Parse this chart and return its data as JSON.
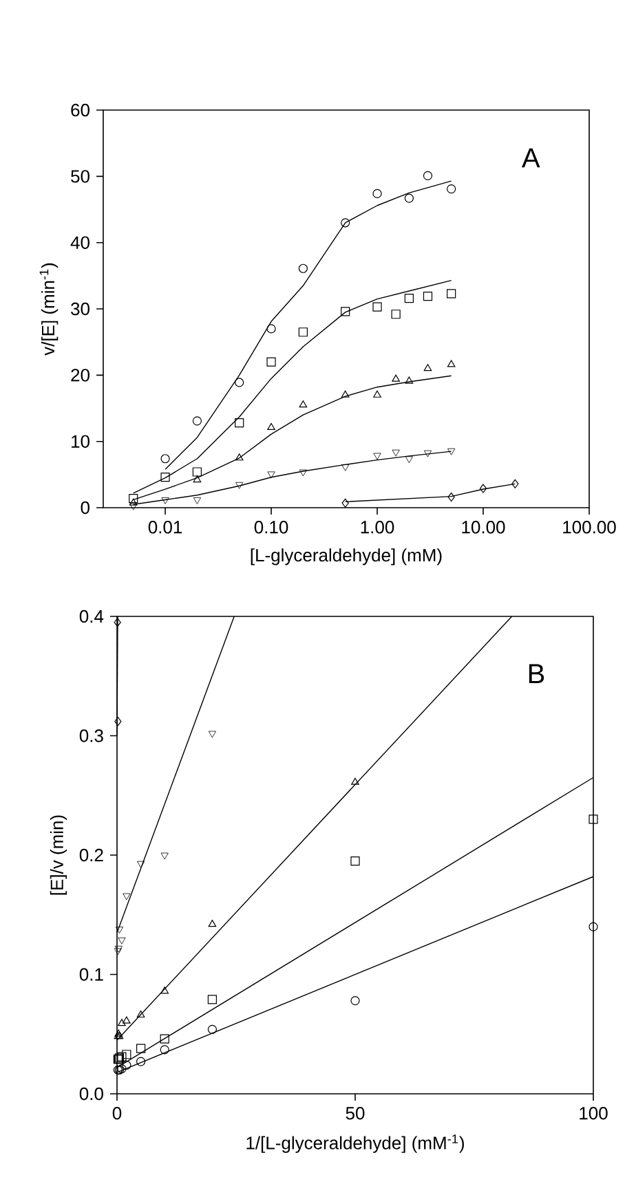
{
  "chart_data": [
    {
      "type": "scatter",
      "xlabel": "[L-glyceraldehyde] (mM)",
      "ylabel": "v/[E] (min$^{-1}$)",
      "log": "x",
      "xlim": [
        0.0026,
        100
      ],
      "ylim": [
        0,
        60
      ],
      "xticks": [
        {
          "value": 0.01,
          "label": "0.01"
        },
        {
          "value": 0.1,
          "label": "0.10"
        },
        {
          "value": 1,
          "label": "1.00"
        },
        {
          "value": 10,
          "label": "10.00"
        },
        {
          "value": 100,
          "label": "100.00"
        }
      ],
      "yticks": [
        0,
        10,
        20,
        30,
        40,
        50,
        60
      ],
      "annotations": [
        "A"
      ],
      "series": [
        {
          "marker": "circle",
          "color": "#000000",
          "x": [
            0.01,
            0.02,
            0.05,
            0.1,
            0.2,
            0.5,
            1,
            2,
            3,
            5
          ],
          "values": [
            7.4,
            13.1,
            18.9,
            27.0,
            36.1,
            43.0,
            47.4,
            46.7,
            50.1,
            48.1
          ]
        },
        {
          "marker": "square",
          "color": "#000000",
          "x": [
            0.005,
            0.01,
            0.02,
            0.05,
            0.1,
            0.2,
            0.5,
            1,
            1.5,
            2,
            3,
            5
          ],
          "values": [
            1.4,
            4.6,
            5.4,
            12.8,
            22.0,
            26.5,
            29.6,
            30.3,
            29.2,
            31.6,
            31.9,
            32.3
          ]
        },
        {
          "marker": "triangle",
          "color": "#000000",
          "x": [
            0.005,
            0.02,
            0.05,
            0.1,
            0.2,
            0.5,
            1,
            1.5,
            2,
            3,
            5
          ],
          "values": [
            0.7,
            4.2,
            7.5,
            12.1,
            15.5,
            17.0,
            17.0,
            19.4,
            19.1,
            21.0,
            21.6
          ]
        },
        {
          "marker": "triangle_down",
          "color": "#000000",
          "x": [
            0.005,
            0.01,
            0.02,
            0.05,
            0.1,
            0.2,
            0.5,
            1,
            1.5,
            2,
            3,
            5
          ],
          "values": [
            0.3,
            1.2,
            1.2,
            3.5,
            5.1,
            5.4,
            6.2,
            7.9,
            8.4,
            7.4,
            8.3,
            8.6
          ]
        },
        {
          "marker": "diamond",
          "color": "#000000",
          "x": [
            0.5,
            5,
            10,
            20
          ],
          "values": [
            0.7,
            1.6,
            2.9,
            3.6
          ]
        },
        {
          "type": "line",
          "color": "#000000",
          "x": [
            0.01,
            0.02,
            0.05,
            0.1,
            0.2,
            0.5,
            1,
            2,
            5
          ],
          "values": [
            5.8,
            10.6,
            20.0,
            28.1,
            33.5,
            43.0,
            45.6,
            47.5,
            49.3
          ]
        },
        {
          "type": "line",
          "color": "#000000",
          "x": [
            0.005,
            0.01,
            0.02,
            0.05,
            0.1,
            0.2,
            0.5,
            1,
            2,
            5
          ],
          "values": [
            2.2,
            4.5,
            7.4,
            13.7,
            19.5,
            24.3,
            29.5,
            31.5,
            32.7,
            34.3
          ]
        },
        {
          "type": "line",
          "color": "#000000",
          "x": [
            0.005,
            0.01,
            0.02,
            0.05,
            0.1,
            0.2,
            0.5,
            1,
            2,
            5
          ],
          "values": [
            1.2,
            2.8,
            4.5,
            7.5,
            11.1,
            14.0,
            16.8,
            18.2,
            19.0,
            19.9
          ]
        },
        {
          "type": "line",
          "color": "#000000",
          "x": [
            0.005,
            0.01,
            0.02,
            0.05,
            0.1,
            0.2,
            0.5,
            1,
            2,
            5
          ],
          "values": [
            0.5,
            1.2,
            1.9,
            3.3,
            4.6,
            5.5,
            6.5,
            7.2,
            7.8,
            8.5
          ]
        },
        {
          "type": "line",
          "color": "#000000",
          "x": [
            0.5,
            5,
            10,
            20
          ],
          "values": [
            0.9,
            1.7,
            2.8,
            3.6
          ]
        }
      ]
    },
    {
      "type": "scatter",
      "xlabel": "1/[L-glyceraldehyde] (mM$^{-1}$)",
      "ylabel": "[E]/v (min)",
      "xlim": [
        0,
        100
      ],
      "ylim": [
        0,
        0.4
      ],
      "xticks": [
        0,
        50,
        100
      ],
      "yticks": [
        {
          "value": 0,
          "label": "0.0"
        },
        {
          "value": 0.1,
          "label": "0.1"
        },
        {
          "value": 0.2,
          "label": "0.2"
        },
        {
          "value": 0.3,
          "label": "0.3"
        },
        {
          "value": 0.4,
          "label": "0.4"
        }
      ],
      "annotations": [
        "B"
      ],
      "series": [
        {
          "marker": "circle",
          "color": "#000000",
          "x": [
            100,
            50,
            20,
            10,
            5,
            2,
            1,
            0.5,
            0.2
          ],
          "values": [
            0.14,
            0.078,
            0.054,
            0.037,
            0.027,
            0.024,
            0.021,
            0.02,
            0.02
          ]
        },
        {
          "marker": "square",
          "color": "#000000",
          "x": [
            100,
            50,
            20,
            10,
            5,
            2,
            1,
            0.5,
            0.33,
            0.2
          ],
          "values": [
            0.23,
            0.195,
            0.079,
            0.046,
            0.038,
            0.033,
            0.031,
            0.03,
            0.029,
            0.029
          ]
        },
        {
          "marker": "triangle",
          "color": "#000000",
          "x": [
            50,
            20,
            10,
            5,
            2,
            1,
            0.5,
            0.33,
            0.2
          ],
          "values": [
            0.261,
            0.142,
            0.086,
            0.066,
            0.061,
            0.059,
            0.048,
            0.05,
            0.048
          ]
        },
        {
          "marker": "triangle_down",
          "color": "#000000",
          "x": [
            20,
            10,
            5,
            2,
            1,
            0.5,
            0.33,
            0.2
          ],
          "values": [
            0.302,
            0.2,
            0.193,
            0.166,
            0.129,
            0.138,
            0.122,
            0.12
          ]
        },
        {
          "marker": "diamond",
          "color": "#000000",
          "x": [
            0.2,
            0.1
          ],
          "values": [
            0.312,
            0.395
          ]
        },
        {
          "type": "line",
          "color": "#000000",
          "x": [
            0,
            100
          ],
          "values": [
            0.018,
            0.182
          ]
        },
        {
          "type": "line",
          "color": "#000000",
          "x": [
            0,
            100
          ],
          "values": [
            0.022,
            0.265
          ]
        },
        {
          "type": "line",
          "color": "#000000",
          "x": [
            0,
            82.9
          ],
          "values": [
            0.045,
            0.4
          ]
        },
        {
          "type": "line",
          "color": "#000000",
          "x": [
            0,
            24.6
          ],
          "values": [
            0.135,
            0.4
          ]
        },
        {
          "type": "line",
          "color": "#000000",
          "x": [
            0,
            0.15
          ],
          "values": [
            0.3,
            0.4
          ]
        }
      ]
    }
  ]
}
